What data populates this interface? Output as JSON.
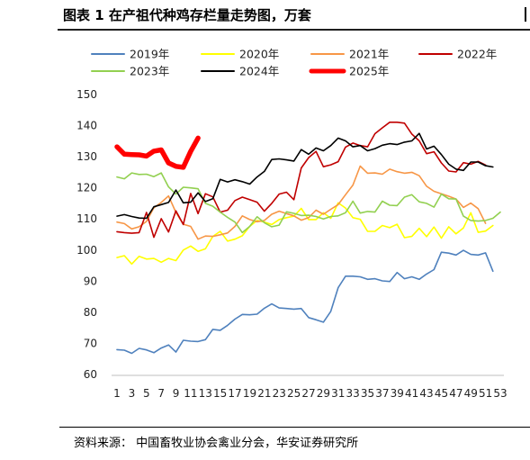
{
  "title": "图表 1  在产祖代种鸡存栏量走势图，万套",
  "source": "资料来源：   中国畜牧业协会禽业分会，华安证券研究所",
  "chart_data": {
    "type": "line",
    "title": "在产祖代种鸡存栏量走势图，万套",
    "xlabel": "",
    "ylabel": "",
    "ylim": [
      60,
      150
    ],
    "yticks": [
      60,
      70,
      80,
      90,
      100,
      110,
      120,
      130,
      140,
      150
    ],
    "xlim": [
      1,
      53
    ],
    "xtick_labels": [
      "1",
      "3",
      "5",
      "7",
      "9",
      "11",
      "13",
      "15",
      "17",
      "19",
      "21",
      "23",
      "25",
      "27",
      "29",
      "31",
      "33",
      "35",
      "37",
      "39",
      "41",
      "43",
      "45",
      "47",
      "49",
      "51",
      "53"
    ],
    "grid": false,
    "legend": "top",
    "series": [
      {
        "name": "2019年",
        "color": "#4f81bd",
        "width": 1.6,
        "values": [
          68.0,
          67.8,
          66.8,
          68.4,
          67.9,
          67.0,
          68.5,
          69.5,
          67.2,
          71.0,
          70.7,
          70.6,
          71.2,
          74.5,
          74.2,
          75.8,
          77.8,
          79.3,
          79.2,
          79.4,
          81.3,
          82.7,
          81.4,
          81.2,
          81.0,
          81.2,
          78.3,
          77.6,
          76.8,
          80.3,
          87.9,
          91.6,
          91.6,
          91.4,
          90.6,
          90.8,
          90.1,
          89.9,
          92.8,
          90.8,
          91.4,
          90.6,
          92.3,
          93.7,
          99.3,
          99.0,
          98.4,
          99.9,
          98.6,
          98.4,
          99.1,
          93.2
        ]
      },
      {
        "name": "2020年",
        "color": "#ffff00",
        "width": 1.6,
        "values": [
          97.6,
          98.2,
          95.5,
          98.0,
          97.1,
          97.3,
          96.1,
          97.3,
          96.6,
          100.0,
          101.3,
          99.6,
          100.4,
          104.4,
          106.0,
          102.9,
          103.5,
          104.6,
          107.6,
          109.5,
          109.0,
          108.2,
          109.8,
          110.4,
          110.9,
          113.4,
          109.8,
          109.8,
          112.0,
          110.2,
          115.2,
          113.5,
          110.4,
          109.9,
          106.0,
          106.0,
          107.9,
          107.2,
          108.3,
          104.0,
          104.4,
          107.0,
          104.3,
          107.4,
          103.8,
          107.5,
          105.2,
          107.1,
          112.0,
          105.7,
          106.1,
          107.9
        ]
      },
      {
        "name": "2021年",
        "color": "#f79646",
        "width": 1.6,
        "values": [
          109.0,
          108.5,
          106.8,
          107.5,
          109.2,
          113.6,
          115.3,
          117.4,
          112.1,
          108.3,
          107.6,
          103.5,
          104.5,
          104.4,
          104.9,
          105.5,
          107.6,
          111.0,
          109.8,
          109.1,
          109.5,
          111.5,
          112.5,
          111.7,
          111.0,
          109.6,
          110.4,
          112.8,
          111.5,
          113.1,
          114.6,
          117.8,
          120.9,
          127.0,
          124.7,
          124.8,
          124.4,
          126.0,
          125.2,
          124.7,
          125.0,
          123.9,
          120.5,
          118.9,
          118.1,
          117.3,
          116.4,
          113.7,
          115.1,
          113.3,
          108.6
        ]
      },
      {
        "name": "2022年",
        "color": "#c00000",
        "width": 1.6,
        "values": [
          105.9,
          105.6,
          105.4,
          105.6,
          112.1,
          104.1,
          110.1,
          105.8,
          112.6,
          108.2,
          118.2,
          111.7,
          118.1,
          117.1,
          112.2,
          112.8,
          115.9,
          117.0,
          116.2,
          115.4,
          112.5,
          115.0,
          118.0,
          118.6,
          116.2,
          126.4,
          129.7,
          131.7,
          126.8,
          127.4,
          128.4,
          133.1,
          134.4,
          133.6,
          133.2,
          137.4,
          139.3,
          141.1,
          141.1,
          140.8,
          137.3,
          135.1,
          131.0,
          131.6,
          128.0,
          125.4,
          125.1,
          128.1,
          127.6,
          128.5,
          127.3
        ]
      },
      {
        "name": "2023年",
        "color": "#92d050",
        "width": 1.6,
        "values": [
          123.5,
          122.9,
          124.8,
          124.3,
          124.4,
          123.6,
          124.8,
          120.3,
          118.0,
          120.2,
          120.0,
          119.7,
          115.0,
          114.1,
          112.2,
          110.5,
          109.0,
          105.6,
          107.6,
          110.7,
          108.8,
          107.5,
          108.0,
          112.3,
          111.8,
          111.1,
          111.2,
          110.8,
          110.0,
          110.8,
          111.0,
          112.0,
          115.7,
          111.9,
          112.4,
          112.2,
          115.7,
          114.4,
          114.3,
          117.0,
          117.8,
          115.5,
          115.0,
          113.8,
          118.0,
          116.5,
          116.4,
          110.9,
          109.5,
          109.3,
          109.5,
          110.2,
          112.2
        ]
      },
      {
        "name": "2024年",
        "color": "#000000",
        "width": 1.6,
        "values": [
          110.9,
          111.4,
          110.8,
          110.3,
          110.2,
          113.9,
          114.6,
          115.3,
          119.3,
          115.2,
          115.4,
          118.4,
          115.6,
          116.5,
          122.7,
          121.9,
          122.6,
          122.0,
          121.2,
          123.5,
          125.3,
          129.1,
          129.3,
          129.0,
          128.6,
          132.3,
          130.8,
          132.8,
          131.9,
          133.6,
          136.0,
          135.1,
          133.2,
          133.6,
          131.9,
          132.6,
          133.7,
          134.2,
          133.9,
          134.7,
          135.1,
          137.5,
          132.5,
          133.4,
          130.7,
          127.6,
          126.0,
          125.6,
          128.3,
          128.3,
          127.1,
          126.7
        ]
      },
      {
        "name": "2025年",
        "color": "#ff0000",
        "width": 5.5,
        "values": [
          133.2,
          130.8,
          130.7,
          130.6,
          130.2,
          131.8,
          132.2,
          128.0,
          126.9,
          126.6,
          131.7,
          136.0
        ]
      }
    ]
  }
}
